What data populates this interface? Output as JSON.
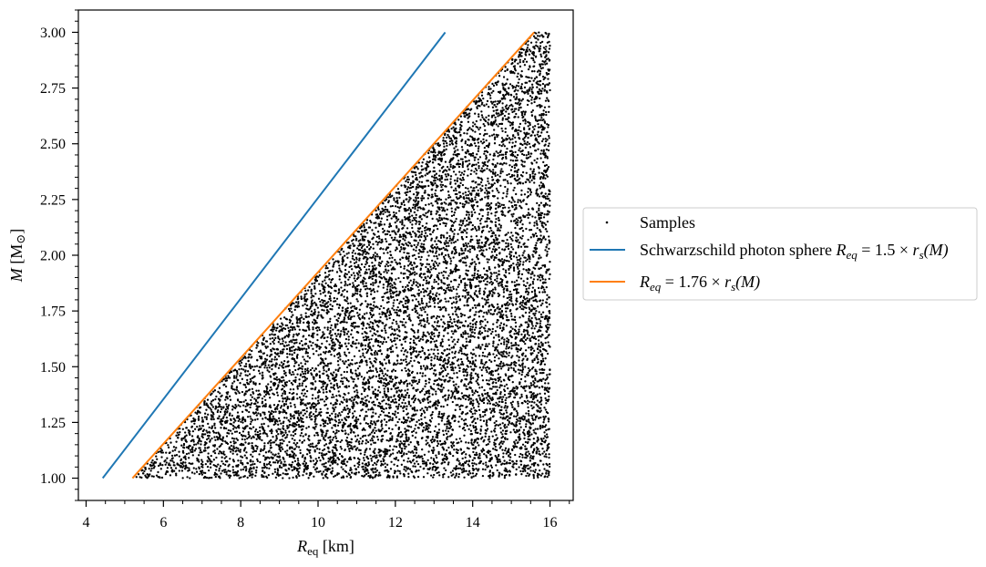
{
  "chart_data": {
    "type": "scatter",
    "title": "",
    "xlabel": {
      "main": "R",
      "sub": "eq",
      "unit": " [km]"
    },
    "ylabel": {
      "main": "M",
      "unit_open": " [M",
      "unit_sym": "⊙",
      "unit_close": "]"
    },
    "xlim": [
      3.8,
      16.6
    ],
    "ylim": [
      0.9,
      3.1
    ],
    "grid": false,
    "legend_position": "outside-right",
    "x_major_ticks": [
      4,
      6,
      8,
      10,
      12,
      14,
      16
    ],
    "x_minor_step": 0.5,
    "y_major_ticks": [
      1.0,
      1.25,
      1.5,
      1.75,
      2.0,
      2.25,
      2.5,
      2.75,
      3.0
    ],
    "y_minor_step": 0.05,
    "scatter_samples": {
      "name": "Samples",
      "color": "#000000",
      "count": 10000,
      "x_range": [
        5.2,
        16.0
      ],
      "y_range": [
        1.0,
        3.0
      ],
      "distribution": "uniform in region R_eq >= 1.76 x r_s(M)"
    },
    "lines": [
      {
        "name": "Schwarzschild photon sphere",
        "coefficient": 1.5,
        "color": "#1f77b4",
        "x": [
          4.43,
          13.29
        ],
        "y": [
          1.0,
          3.0
        ]
      },
      {
        "name": "",
        "coefficient": 1.76,
        "color": "#ff7f0e",
        "x": [
          5.2,
          15.59
        ],
        "y": [
          1.0,
          3.0
        ]
      }
    ],
    "legend": [
      {
        "kind": "scatter",
        "text": "Samples"
      },
      {
        "kind": "line",
        "color": "#1f77b4",
        "text": "Schwarzschild photon sphere ",
        "math": {
          "lhs": "R",
          "lhs_sub": "eq",
          "coef": "1.5",
          "rs": "r",
          "rs_sub": "s",
          "arg": "(M)"
        }
      },
      {
        "kind": "line",
        "color": "#ff7f0e",
        "text": "",
        "math": {
          "lhs": "R",
          "lhs_sub": "eq",
          "coef": "1.76",
          "rs": "r",
          "rs_sub": "s",
          "arg": "(M)"
        }
      }
    ]
  }
}
